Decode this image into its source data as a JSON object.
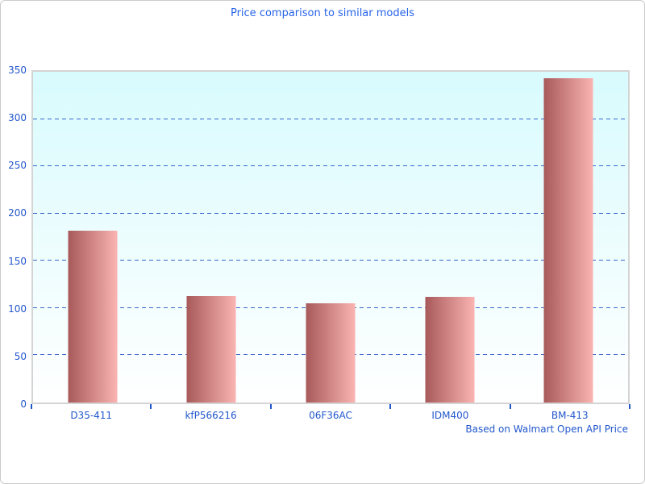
{
  "window": {
    "background": "#ffffff",
    "border_color": "#cccccc"
  },
  "chart_data": {
    "type": "bar",
    "title": "Price comparison to similar models",
    "categories": [
      "D35-411",
      "kfP566216",
      "06F36AC",
      "IDM400",
      "BM-413"
    ],
    "values": [
      182,
      113,
      105,
      112,
      343
    ],
    "xlabel": "",
    "ylabel": "",
    "ylim": [
      0,
      350
    ],
    "ytick_step": 50,
    "yticks": [
      0,
      50,
      100,
      150,
      200,
      250,
      300,
      350
    ],
    "grid": "horizontal-dashed",
    "legend": "none",
    "annotation": "Based on Walmart Open API Price",
    "colors": {
      "title_text": "#2663e8",
      "axis_text": "#2257cc",
      "gridline": "#3a66cc",
      "plot_border": "#d4d4d4",
      "plot_bg_top": "#d8fbfd",
      "plot_bg_bottom": "#ffffff",
      "bar_gradient_left": "#a85a5a",
      "bar_gradient_right": "#fab4b1"
    }
  }
}
